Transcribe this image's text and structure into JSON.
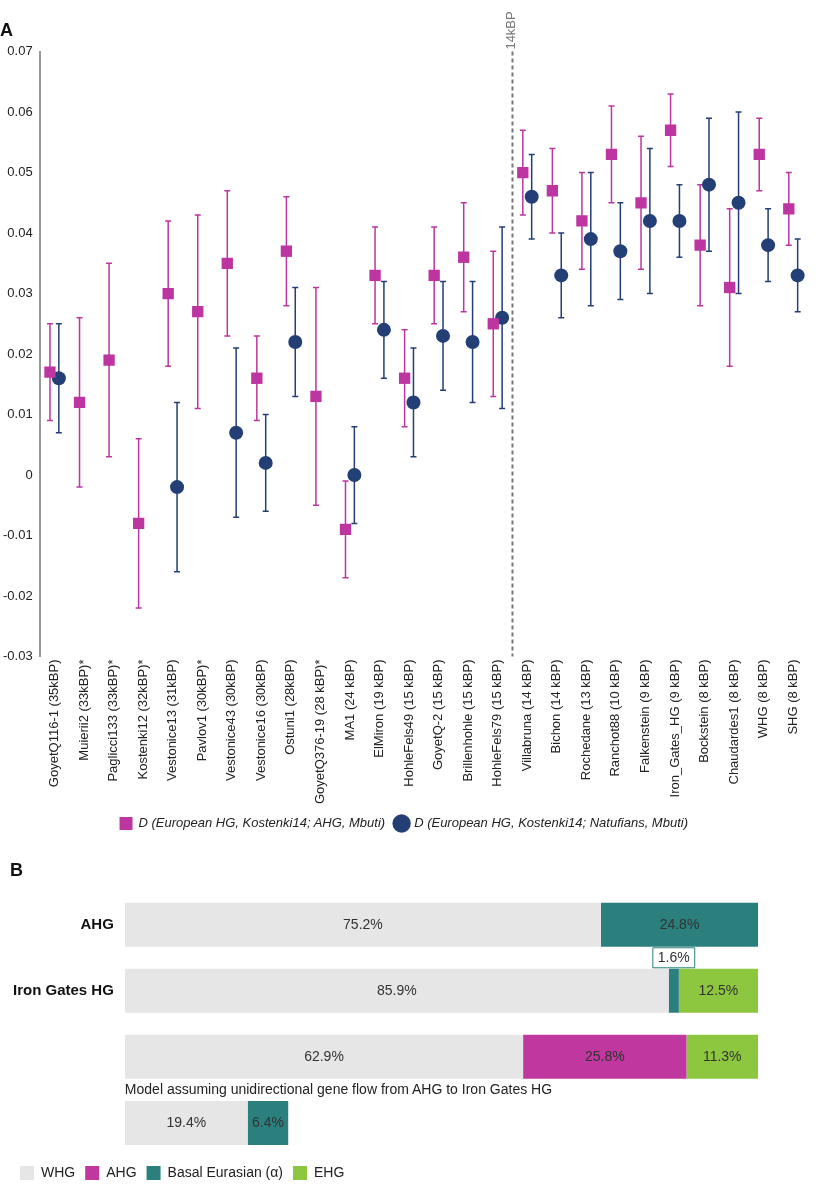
{
  "chart_data": [
    {
      "type": "scatter",
      "title": "A",
      "categories": [
        "GoyetQ116-1 (35kBP)",
        "Muierii2 (33kBP)*",
        "Paglicci133 (33kBP)*",
        "Kostenki12 (32kBP)*",
        "Vestonice13 (31kBP)",
        "Pavlov1 (30kBP)*",
        "Vestonice43 (30kBP)",
        "Vestonice16 (30kBP)",
        "Ostuni1 (28kBP)",
        "GoyetQ376-19 (28 kBP)*",
        "MA1 (24 kBP)",
        "ElMiron (19 kBP)",
        "HohleFels49 (15 kBP)",
        "GoyetQ-2 (15 kBP)",
        "Brillenhohle (15 kBP)",
        "HohleFels79 (15 kBP)",
        "Villabruna (14 kBP)",
        "Bichon (14 kBP)",
        "Rochedane (13 kBP)",
        "Ranchot88 (10 kBP)",
        "Falkenstein (9 kBP)",
        "Iron_Gates_HG (9 kBP)",
        "Bockstein (8 kBP)",
        "Chaudardes1 (8 kBP)",
        "WHG (8 kBP)",
        "SHG (8 kBP)"
      ],
      "series": [
        {
          "name": "D (European HG, Kostenki14; AHG, Mbuti)",
          "color": "#bd35a0",
          "marker": "square",
          "values": [
            0.017,
            0.012,
            0.019,
            -0.008,
            0.03,
            0.027,
            0.035,
            0.016,
            0.037,
            0.013,
            -0.009,
            0.033,
            0.016,
            0.033,
            0.036,
            0.025,
            0.05,
            0.047,
            0.042,
            0.053,
            0.045,
            0.057,
            0.038,
            0.031,
            0.053,
            0.044
          ],
          "errors": [
            0.008,
            0.014,
            0.016,
            0.014,
            0.012,
            0.016,
            0.012,
            0.007,
            0.009,
            0.018,
            0.008,
            0.008,
            0.008,
            0.008,
            0.009,
            0.012,
            0.007,
            0.007,
            0.008,
            0.008,
            0.011,
            0.006,
            0.01,
            0.013,
            0.006,
            0.006
          ]
        },
        {
          "name": "D (European HG, Kostenki14; Natufians, Mbuti)",
          "color": "#233f75",
          "marker": "circle",
          "values": [
            0.016,
            null,
            null,
            null,
            -0.002,
            null,
            0.007,
            0.002,
            0.022,
            null,
            0.0,
            0.024,
            0.012,
            0.023,
            0.022,
            0.026,
            0.046,
            0.033,
            0.039,
            0.037,
            0.042,
            0.042,
            0.048,
            0.045,
            0.038,
            0.033
          ],
          "errors": [
            0.009,
            null,
            null,
            null,
            0.014,
            null,
            0.014,
            0.008,
            0.009,
            null,
            0.008,
            0.008,
            0.009,
            0.009,
            0.01,
            0.015,
            0.007,
            0.007,
            0.011,
            0.008,
            0.012,
            0.006,
            0.011,
            0.015,
            0.006,
            0.006
          ]
        }
      ],
      "ylim": [
        -0.03,
        0.07
      ],
      "yticks": [
        -0.03,
        -0.02,
        -0.01,
        0,
        0.01,
        0.02,
        0.03,
        0.04,
        0.05,
        0.06,
        0.07
      ],
      "annotations": [
        "14kBP"
      ],
      "legend": "bottom"
    },
    {
      "type": "bar",
      "title": "B",
      "orientation": "horizontal",
      "stacked": true,
      "categories": [
        "AHG",
        "Iron Gates HG",
        null,
        null
      ],
      "series": [
        {
          "name": "WHG",
          "color": "#e6e6e6",
          "values": [
            75.2,
            85.9,
            62.9,
            19.4
          ],
          "value_labels": [
            "75.2%",
            "85.9%",
            "62.9%",
            "19.4%"
          ]
        },
        {
          "name": "AHG",
          "color": "#c0379f",
          "values": [
            null,
            null,
            25.8,
            null
          ],
          "value_labels": [
            null,
            null,
            "25.8%",
            null
          ]
        },
        {
          "name": "Basal Eurasian (α)",
          "color": "#2b7f7c",
          "values": [
            24.8,
            1.6,
            null,
            6.4
          ],
          "value_labels": [
            "24.8%",
            "1.6%",
            null,
            "6.4%"
          ]
        },
        {
          "name": "EHG",
          "color": "#8dc63f",
          "values": [
            null,
            12.5,
            11.3,
            null
          ],
          "value_labels": [
            null,
            "12.5%",
            "11.3%",
            null
          ]
        }
      ],
      "xlim": [
        0,
        100
      ],
      "tick_labels": "y",
      "annotations": [
        "Model assuming unidirectional gene flow from AHG to Iron Gates HG"
      ],
      "legend": "bottom left"
    }
  ]
}
